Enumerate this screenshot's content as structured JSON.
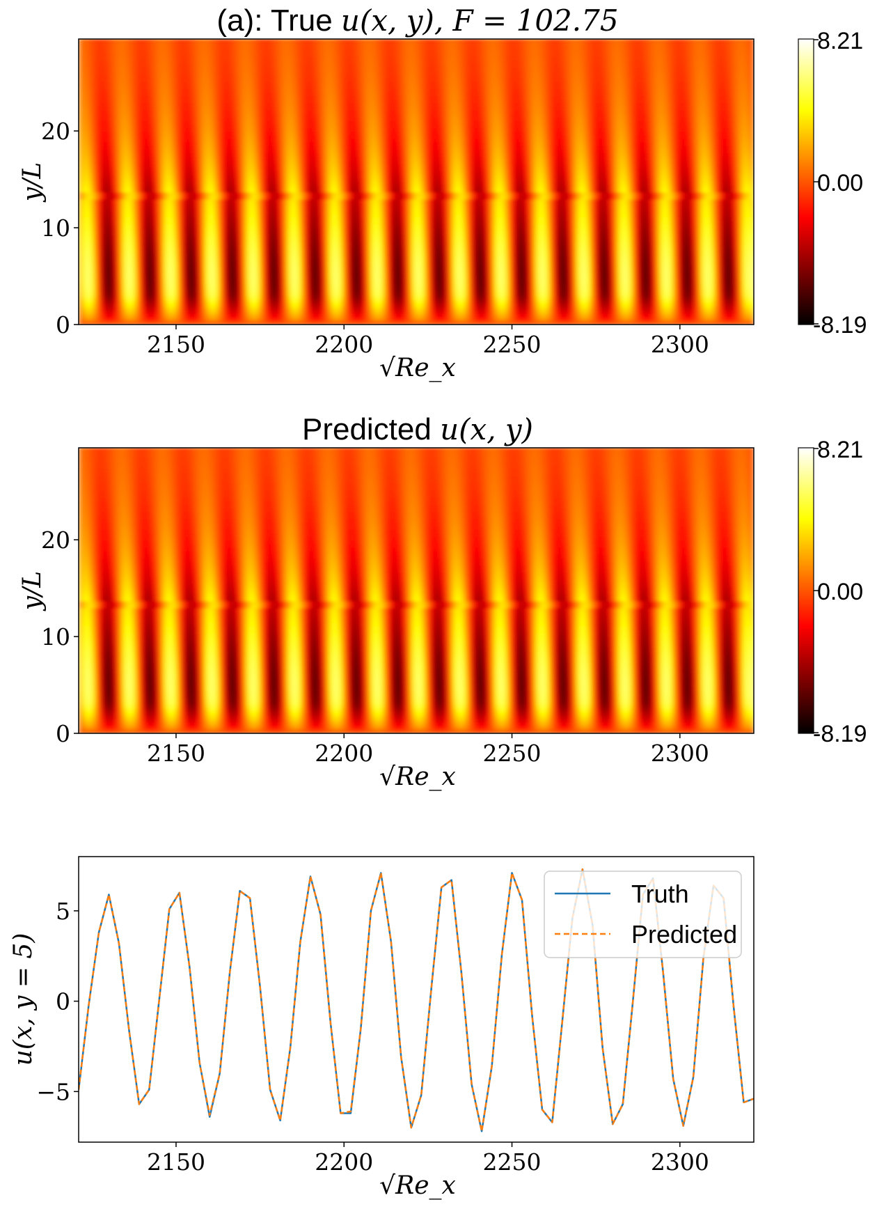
{
  "chart_data": [
    {
      "type": "heatmap",
      "title_prefix": "(a): True ",
      "title_math": "u(x, y), F = 102.75",
      "xlabel": "√Re_x",
      "ylabel": "y/L",
      "xlim": [
        2121,
        2322
      ],
      "ylim": [
        0,
        29.5
      ],
      "xticks": [
        "2150",
        "2200",
        "2250",
        "2300"
      ],
      "yticks": [
        "0",
        "10",
        "20"
      ],
      "colormap": "hot",
      "colorbar": {
        "min": -8.19,
        "max": 8.21,
        "ticks": [
          "8.21",
          "0.00",
          "-8.19"
        ]
      }
    },
    {
      "type": "heatmap",
      "title_prefix": "Predicted ",
      "title_math": "u(x, y)",
      "xlabel": "√Re_x",
      "ylabel": "y/L",
      "xlim": [
        2121,
        2322
      ],
      "ylim": [
        0,
        29.5
      ],
      "xticks": [
        "2150",
        "2200",
        "2250",
        "2300"
      ],
      "yticks": [
        "0",
        "10",
        "20"
      ],
      "colormap": "hot",
      "colorbar": {
        "min": -8.19,
        "max": 8.21,
        "ticks": [
          "8.21",
          "0.00",
          "-8.19"
        ]
      }
    },
    {
      "type": "line",
      "title": "",
      "xlabel": "√Re_x",
      "ylabel": "u(x, y = 5)",
      "xlim": [
        2121,
        2322
      ],
      "ylim": [
        -7.8,
        8
      ],
      "xticks": [
        "2150",
        "2200",
        "2250",
        "2300"
      ],
      "yticks": [
        "5",
        "0",
        "−5"
      ],
      "legend_position": "top-right",
      "series": [
        {
          "name": "Truth",
          "color": "#1f77b4",
          "style": "solid",
          "x": [
            2121,
            2124,
            2127,
            2130,
            2133,
            2136,
            2139,
            2142,
            2145,
            2148,
            2151,
            2154,
            2157,
            2160,
            2163,
            2166,
            2169,
            2172,
            2175,
            2178,
            2181,
            2184,
            2187,
            2190,
            2193,
            2196,
            2199,
            2202,
            2205,
            2208,
            2211,
            2214,
            2217,
            2220,
            2223,
            2226,
            2229,
            2232,
            2235,
            2238,
            2241,
            2244,
            2247,
            2250,
            2253,
            2256,
            2259,
            2262,
            2265,
            2268,
            2271,
            2274,
            2277,
            2280,
            2283,
            2286,
            2289,
            2292,
            2295,
            2298,
            2301,
            2304,
            2307,
            2310,
            2313,
            2316,
            2319,
            2322
          ],
          "y": [
            -4.9,
            -0.2,
            3.8,
            5.9,
            3.2,
            -1.6,
            -5.7,
            -4.9,
            0.1,
            5.1,
            6.0,
            1.9,
            -3.4,
            -6.4,
            -4.0,
            1.6,
            6.1,
            5.7,
            0.8,
            -4.9,
            -6.6,
            -2.6,
            3.3,
            6.9,
            4.8,
            -1.2,
            -6.2,
            -6.2,
            -1.5,
            5.0,
            7.1,
            3.3,
            -3.1,
            -7.0,
            -5.2,
            0.7,
            6.3,
            6.7,
            1.5,
            -4.6,
            -7.2,
            -3.6,
            2.6,
            7.1,
            5.6,
            -0.8,
            -6.0,
            -6.7,
            -1.1,
            4.6,
            7.3,
            4.2,
            -2.6,
            -6.8,
            -5.7,
            0.0,
            5.9,
            6.8,
            1.6,
            -4.3,
            -6.9,
            -4.2,
            2.4,
            6.4,
            5.7,
            -0.3,
            -5.6,
            -5.4
          ]
        },
        {
          "name": "Predicted",
          "color": "#ff7f0e",
          "style": "dashed",
          "x": [
            2121,
            2124,
            2127,
            2130,
            2133,
            2136,
            2139,
            2142,
            2145,
            2148,
            2151,
            2154,
            2157,
            2160,
            2163,
            2166,
            2169,
            2172,
            2175,
            2178,
            2181,
            2184,
            2187,
            2190,
            2193,
            2196,
            2199,
            2202,
            2205,
            2208,
            2211,
            2214,
            2217,
            2220,
            2223,
            2226,
            2229,
            2232,
            2235,
            2238,
            2241,
            2244,
            2247,
            2250,
            2253,
            2256,
            2259,
            2262,
            2265,
            2268,
            2271,
            2274,
            2277,
            2280,
            2283,
            2286,
            2289,
            2292,
            2295,
            2298,
            2301,
            2304,
            2307,
            2310,
            2313,
            2316,
            2319,
            2322
          ],
          "y": [
            -4.9,
            -0.2,
            3.8,
            5.9,
            3.2,
            -1.6,
            -5.7,
            -4.9,
            0.1,
            5.1,
            6.0,
            1.9,
            -3.4,
            -6.3,
            -4.0,
            1.6,
            6.1,
            5.7,
            0.8,
            -4.9,
            -6.6,
            -2.6,
            3.3,
            6.9,
            4.8,
            -1.2,
            -6.2,
            -6.1,
            -1.5,
            5.0,
            7.1,
            3.3,
            -3.1,
            -7.0,
            -5.2,
            0.7,
            6.3,
            6.7,
            1.5,
            -4.6,
            -7.2,
            -3.6,
            2.6,
            7.1,
            5.6,
            -0.8,
            -6.0,
            -6.7,
            -1.1,
            4.6,
            7.3,
            4.2,
            -2.6,
            -6.8,
            -5.7,
            0.0,
            5.9,
            6.8,
            1.6,
            -4.3,
            -6.9,
            -4.2,
            2.4,
            6.4,
            5.7,
            -0.3,
            -5.6,
            -5.4
          ]
        }
      ]
    }
  ]
}
